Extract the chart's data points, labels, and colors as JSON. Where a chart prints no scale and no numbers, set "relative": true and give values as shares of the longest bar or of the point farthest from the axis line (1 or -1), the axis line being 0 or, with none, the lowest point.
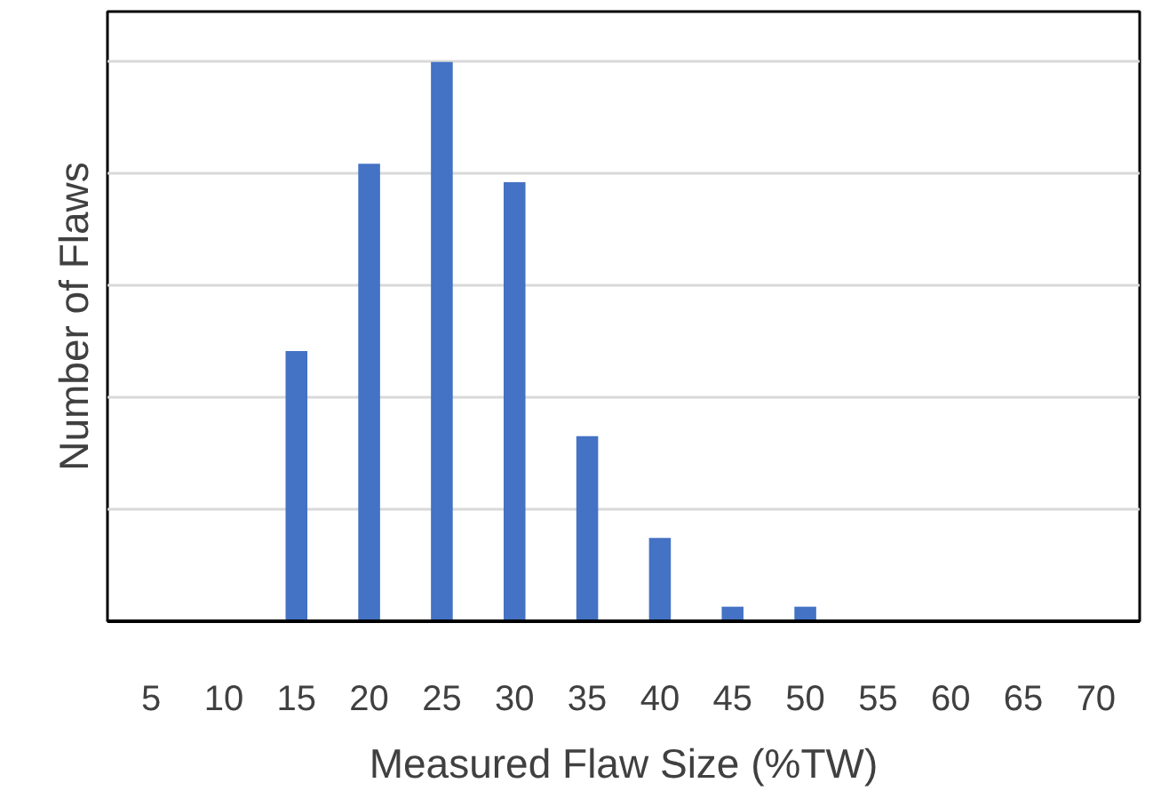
{
  "chart_data": {
    "type": "bar",
    "relative": true,
    "xlabel": "Measured Flaw Size (%TW)",
    "ylabel": "Number of Flaws",
    "categories": [
      "5",
      "10",
      "15",
      "20",
      "25",
      "30",
      "35",
      "40",
      "45",
      "50",
      "55",
      "60",
      "65",
      "70"
    ],
    "values": [
      0,
      0,
      0.483,
      0.818,
      1,
      0.785,
      0.331,
      0.149,
      0.026,
      0.026,
      0,
      0,
      0,
      0
    ],
    "color": "#4472c4",
    "grid": "y"
  }
}
